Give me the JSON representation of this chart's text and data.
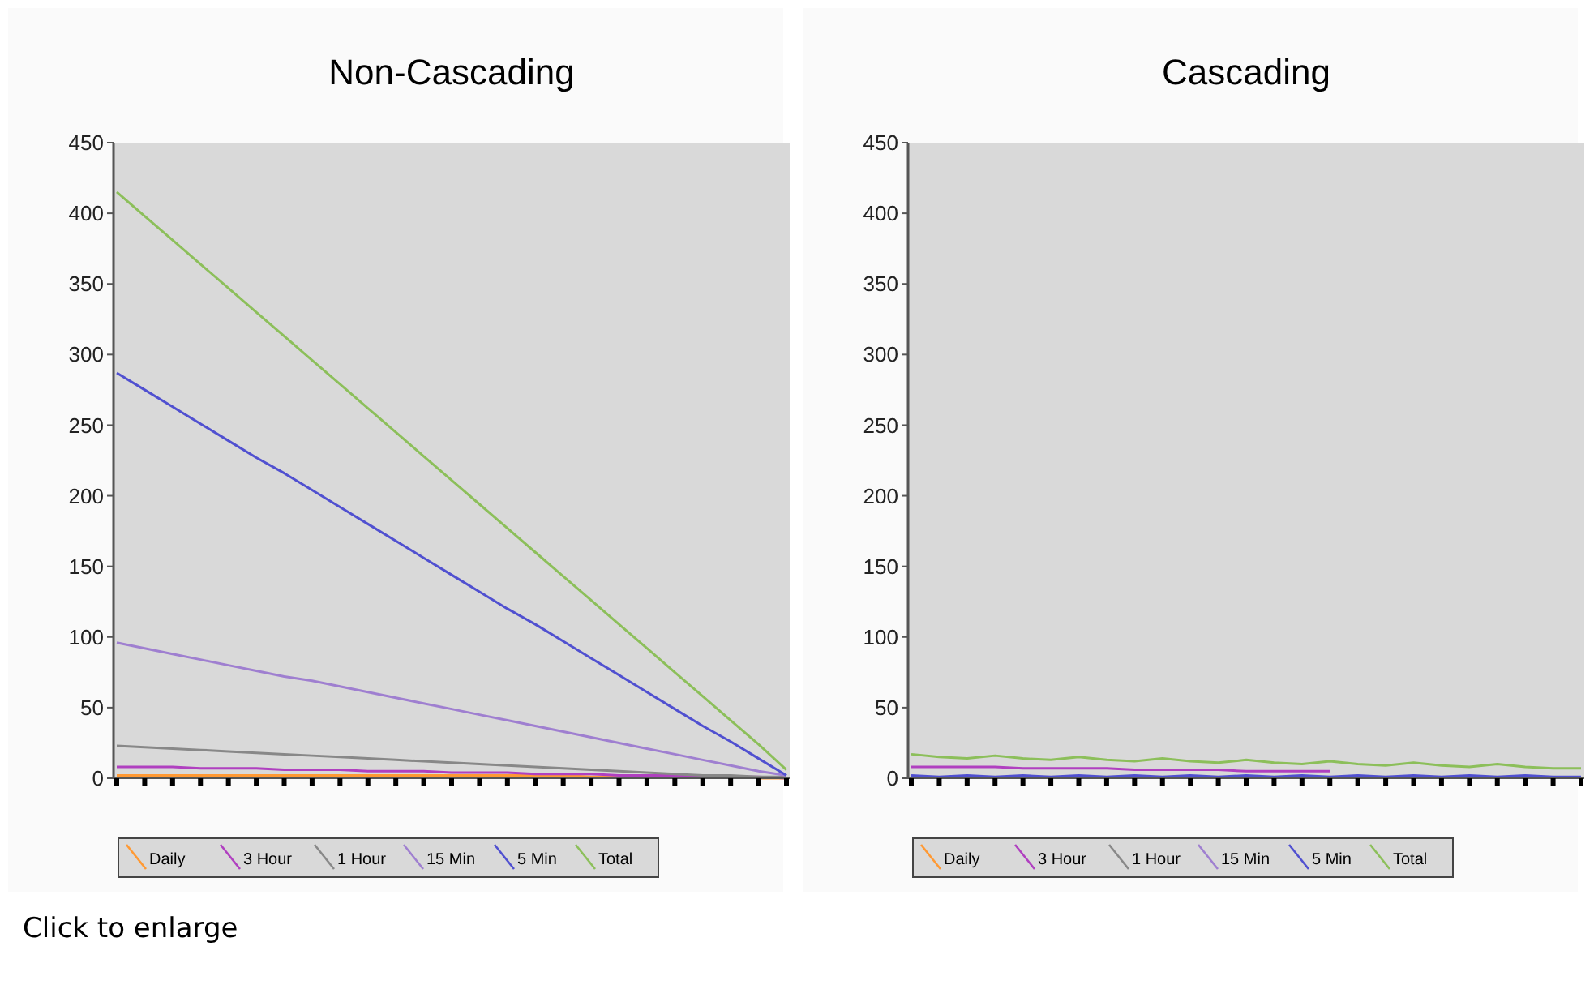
{
  "chart_data": [
    {
      "type": "line",
      "title": "Non-Cascading",
      "categories": [
        null,
        null,
        null,
        null,
        null,
        null,
        null,
        null,
        null,
        null,
        null,
        null,
        null,
        null,
        null,
        null,
        null,
        null,
        null,
        null,
        null,
        null,
        null,
        null,
        null
      ],
      "ylim": [
        0,
        450
      ],
      "yticks": [
        0,
        50,
        100,
        150,
        200,
        250,
        300,
        350,
        400,
        450
      ],
      "grid": false,
      "legend": "bottom",
      "annotations": [
        "Click to enlarge"
      ],
      "series": [
        {
          "name": "Daily",
          "color": "#ff9933",
          "values": [
            2,
            2,
            2,
            2,
            2,
            2,
            2,
            2,
            2,
            2,
            2,
            2,
            2,
            2,
            2,
            2,
            2,
            1,
            1,
            1,
            1,
            null,
            null,
            0,
            0
          ]
        },
        {
          "name": "3 Hour",
          "color": "#b040c0",
          "values": [
            8,
            8,
            8,
            7,
            7,
            7,
            6,
            6,
            6,
            5,
            5,
            5,
            4,
            4,
            4,
            3,
            3,
            3,
            2,
            2,
            2,
            1,
            1,
            1,
            0
          ]
        },
        {
          "name": "1 Hour",
          "color": "#888888",
          "values": [
            23,
            22,
            21,
            20,
            19,
            18,
            17,
            16,
            15,
            14,
            13,
            12,
            11,
            10,
            9,
            8,
            7,
            6,
            5,
            4,
            3,
            2,
            2,
            1,
            1
          ]
        },
        {
          "name": "15 Min",
          "color": "#9f7fd0",
          "values": [
            96,
            92,
            88,
            84,
            80,
            76,
            72,
            69,
            65,
            61,
            57,
            53,
            49,
            45,
            41,
            37,
            33,
            29,
            25,
            21,
            17,
            13,
            9,
            5,
            2
          ]
        },
        {
          "name": "5 Min",
          "color": "#5050d0",
          "values": [
            287,
            275,
            263,
            251,
            239,
            227,
            216,
            204,
            192,
            180,
            168,
            156,
            144,
            132,
            120,
            109,
            97,
            85,
            73,
            61,
            49,
            37,
            26,
            14,
            2
          ]
        },
        {
          "name": "Total",
          "color": "#8cbf5a",
          "values": [
            415,
            398,
            381,
            364,
            347,
            330,
            313,
            296,
            279,
            262,
            245,
            228,
            211,
            194,
            177,
            160,
            143,
            126,
            109,
            92,
            75,
            58,
            41,
            24,
            6
          ]
        }
      ]
    },
    {
      "type": "line",
      "title": "Cascading",
      "categories": [
        null,
        null,
        null,
        null,
        null,
        null,
        null,
        null,
        null,
        null,
        null,
        null,
        null,
        null,
        null,
        null,
        null,
        null,
        null,
        null,
        null,
        null,
        null,
        null,
        null
      ],
      "ylim": [
        0,
        450
      ],
      "yticks": [
        0,
        50,
        100,
        150,
        200,
        250,
        300,
        350,
        400,
        450
      ],
      "grid": false,
      "legend": "bottom",
      "series": [
        {
          "name": "Daily",
          "color": "#ff9933",
          "values": [
            null,
            null,
            null,
            null,
            null,
            null,
            null,
            null,
            null,
            null,
            null,
            null,
            null,
            null,
            null,
            null,
            null,
            null,
            null,
            null,
            null,
            null,
            null,
            null,
            null
          ]
        },
        {
          "name": "3 Hour",
          "color": "#b040c0",
          "values": [
            8,
            8,
            8,
            8,
            7,
            7,
            7,
            7,
            6,
            6,
            6,
            6,
            5,
            5,
            5,
            5,
            null,
            null,
            null,
            null,
            null,
            null,
            null,
            null,
            null
          ]
        },
        {
          "name": "1 Hour",
          "color": "#888888",
          "values": [
            null,
            null,
            null,
            null,
            null,
            null,
            null,
            null,
            null,
            null,
            null,
            null,
            null,
            null,
            null,
            null,
            null,
            null,
            null,
            null,
            null,
            null,
            null,
            null,
            null
          ]
        },
        {
          "name": "15 Min",
          "color": "#9f7fd0",
          "values": [
            null,
            null,
            null,
            null,
            null,
            null,
            null,
            null,
            null,
            null,
            null,
            null,
            null,
            null,
            null,
            null,
            null,
            null,
            null,
            null,
            null,
            null,
            null,
            null,
            null
          ]
        },
        {
          "name": "5 Min",
          "color": "#5050d0",
          "values": [
            2,
            1,
            2,
            1,
            2,
            1,
            2,
            1,
            2,
            1,
            2,
            1,
            2,
            1,
            2,
            1,
            2,
            1,
            2,
            1,
            2,
            1,
            2,
            1,
            1
          ]
        },
        {
          "name": "Total",
          "color": "#8cbf5a",
          "values": [
            17,
            15,
            14,
            16,
            14,
            13,
            15,
            13,
            12,
            14,
            12,
            11,
            13,
            11,
            10,
            12,
            10,
            9,
            11,
            9,
            8,
            10,
            8,
            7,
            7
          ]
        }
      ]
    }
  ]
}
